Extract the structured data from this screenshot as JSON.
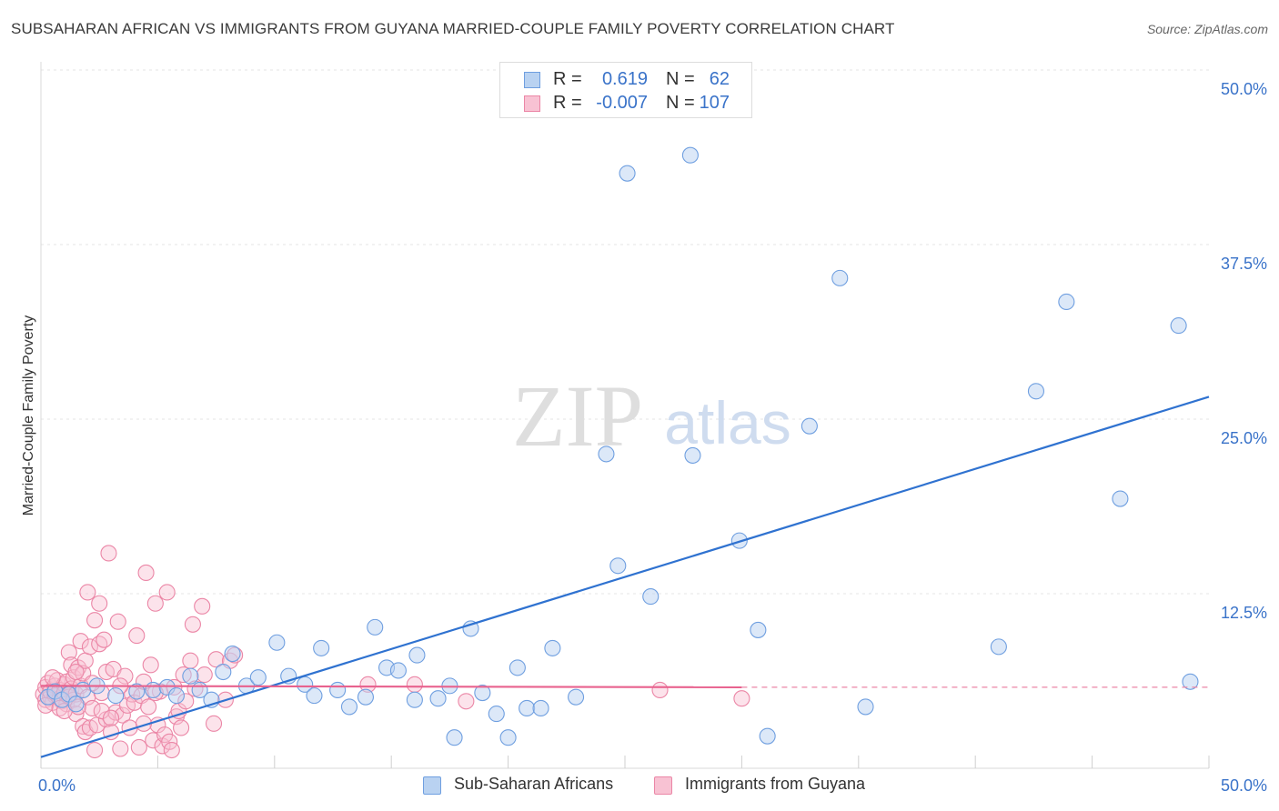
{
  "header": {
    "title": "SUBSAHARAN AFRICAN VS IMMIGRANTS FROM GUYANA MARRIED-COUPLE FAMILY POVERTY CORRELATION CHART",
    "source": "Source: ZipAtlas.com"
  },
  "watermark": {
    "zip": "ZIP",
    "atlas": "atlas"
  },
  "legend": {
    "r_label": "R =",
    "n_label": "N =",
    "rows": [
      {
        "r": "0.619",
        "n": "62"
      },
      {
        "r": "-0.007",
        "n": "107"
      }
    ]
  },
  "colors": {
    "blue_fill": "#b9d2f1",
    "blue_stroke": "#6f9fe0",
    "blue_line": "#2f72d0",
    "pink_fill": "#f8c2d3",
    "pink_stroke": "#eb86a6",
    "pink_line": "#e8628e",
    "tick_label": "#3a73c9",
    "grid": "#e4e4e4"
  },
  "chart_data": {
    "type": "scatter",
    "title": "SUBSAHARAN AFRICAN VS IMMIGRANTS FROM GUYANA MARRIED-COUPLE FAMILY POVERTY CORRELATION CHART",
    "xlabel": "",
    "ylabel": "Married-Couple Family Poverty",
    "xlim": [
      0,
      50
    ],
    "ylim": [
      0,
      50
    ],
    "x_tick_labels": [
      "0.0%",
      "50.0%"
    ],
    "y_ticks": [
      12.5,
      25.0,
      37.5,
      50.0
    ],
    "y_tick_labels": [
      "12.5%",
      "25.0%",
      "37.5%",
      "50.0%"
    ],
    "grid": true,
    "legend_position": "bottom",
    "series": [
      {
        "name": "Sub-Saharan Africans",
        "color": "#6f9fe0",
        "r": 0.619,
        "n": 62,
        "trend": {
          "x": [
            0,
            50
          ],
          "y": [
            0.8,
            26.6
          ]
        },
        "points": [
          [
            0.3,
            5.1
          ],
          [
            0.6,
            5.5
          ],
          [
            0.9,
            4.9
          ],
          [
            1.2,
            5.3
          ],
          [
            1.5,
            4.6
          ],
          [
            1.8,
            5.6
          ],
          [
            2.4,
            5.9
          ],
          [
            3.2,
            5.2
          ],
          [
            4.1,
            5.5
          ],
          [
            4.8,
            5.6
          ],
          [
            5.4,
            5.8
          ],
          [
            5.8,
            5.2
          ],
          [
            6.4,
            6.6
          ],
          [
            6.8,
            5.6
          ],
          [
            7.3,
            4.9
          ],
          [
            7.8,
            6.9
          ],
          [
            8.2,
            8.2
          ],
          [
            8.8,
            5.9
          ],
          [
            9.3,
            6.5
          ],
          [
            10.1,
            9.0
          ],
          [
            10.6,
            6.6
          ],
          [
            11.3,
            6.0
          ],
          [
            11.7,
            5.2
          ],
          [
            12.0,
            8.6
          ],
          [
            12.7,
            5.6
          ],
          [
            13.2,
            4.4
          ],
          [
            13.9,
            5.1
          ],
          [
            14.3,
            10.1
          ],
          [
            14.8,
            7.2
          ],
          [
            15.3,
            7.0
          ],
          [
            16.0,
            4.9
          ],
          [
            16.1,
            8.1
          ],
          [
            17.0,
            5.0
          ],
          [
            17.5,
            5.9
          ],
          [
            17.7,
            2.2
          ],
          [
            18.4,
            10.0
          ],
          [
            18.9,
            5.4
          ],
          [
            19.5,
            3.9
          ],
          [
            20.0,
            2.2
          ],
          [
            20.4,
            7.2
          ],
          [
            20.8,
            4.3
          ],
          [
            21.4,
            4.3
          ],
          [
            21.9,
            8.6
          ],
          [
            22.9,
            5.1
          ],
          [
            24.2,
            22.5
          ],
          [
            24.7,
            14.5
          ],
          [
            25.1,
            42.6
          ],
          [
            26.1,
            12.3
          ],
          [
            27.8,
            43.9
          ],
          [
            27.9,
            22.4
          ],
          [
            29.9,
            16.3
          ],
          [
            30.7,
            9.9
          ],
          [
            31.1,
            2.3
          ],
          [
            32.9,
            24.5
          ],
          [
            34.2,
            35.1
          ],
          [
            35.3,
            4.4
          ],
          [
            41.0,
            8.7
          ],
          [
            42.6,
            27.0
          ],
          [
            43.9,
            33.4
          ],
          [
            46.2,
            19.3
          ],
          [
            48.7,
            31.7
          ],
          [
            49.2,
            6.2
          ]
        ]
      },
      {
        "name": "Immigrants from Guyana",
        "color": "#eb86a6",
        "r": -0.007,
        "n": 107,
        "trend": {
          "x": [
            0,
            30
          ],
          "y": [
            5.9,
            5.8
          ]
        },
        "trend_dashed": {
          "x": [
            30,
            50
          ],
          "y": [
            5.8,
            5.8
          ]
        },
        "points": [
          [
            0.1,
            5.3
          ],
          [
            0.2,
            5.8
          ],
          [
            0.2,
            4.9
          ],
          [
            0.3,
            6.1
          ],
          [
            0.4,
            5.1
          ],
          [
            0.4,
            5.5
          ],
          [
            0.5,
            4.7
          ],
          [
            0.6,
            5.9
          ],
          [
            0.6,
            5.2
          ],
          [
            0.7,
            6.3
          ],
          [
            0.8,
            5.0
          ],
          [
            0.8,
            5.6
          ],
          [
            0.9,
            4.8
          ],
          [
            1.0,
            6.0
          ],
          [
            1.0,
            5.4
          ],
          [
            1.1,
            4.6
          ],
          [
            1.1,
            6.2
          ],
          [
            1.2,
            5.1
          ],
          [
            1.2,
            8.3
          ],
          [
            1.3,
            7.4
          ],
          [
            1.3,
            5.7
          ],
          [
            1.4,
            4.9
          ],
          [
            1.4,
            6.5
          ],
          [
            1.5,
            5.3
          ],
          [
            1.5,
            3.9
          ],
          [
            1.6,
            7.2
          ],
          [
            1.6,
            4.4
          ],
          [
            1.7,
            9.1
          ],
          [
            1.7,
            5.9
          ],
          [
            1.8,
            6.8
          ],
          [
            1.8,
            3.0
          ],
          [
            1.9,
            7.7
          ],
          [
            1.9,
            2.6
          ],
          [
            2.0,
            12.6
          ],
          [
            2.0,
            5.1
          ],
          [
            2.1,
            8.7
          ],
          [
            2.1,
            2.9
          ],
          [
            2.2,
            4.3
          ],
          [
            2.3,
            1.3
          ],
          [
            2.3,
            10.6
          ],
          [
            2.4,
            3.1
          ],
          [
            2.5,
            8.9
          ],
          [
            2.5,
            11.8
          ],
          [
            2.6,
            5.4
          ],
          [
            2.7,
            9.2
          ],
          [
            2.8,
            3.5
          ],
          [
            2.8,
            6.9
          ],
          [
            2.9,
            15.4
          ],
          [
            3.0,
            2.6
          ],
          [
            3.1,
            7.1
          ],
          [
            3.2,
            4.0
          ],
          [
            3.3,
            10.5
          ],
          [
            3.4,
            1.4
          ],
          [
            3.5,
            3.8
          ],
          [
            3.6,
            6.6
          ],
          [
            3.7,
            4.5
          ],
          [
            3.8,
            2.9
          ],
          [
            3.9,
            5.3
          ],
          [
            4.0,
            4.7
          ],
          [
            4.1,
            9.5
          ],
          [
            4.2,
            1.5
          ],
          [
            4.3,
            5.2
          ],
          [
            4.4,
            6.2
          ],
          [
            4.5,
            14.0
          ],
          [
            4.6,
            4.4
          ],
          [
            4.7,
            7.4
          ],
          [
            4.8,
            2.0
          ],
          [
            4.9,
            11.8
          ],
          [
            5.0,
            3.1
          ],
          [
            5.1,
            5.5
          ],
          [
            5.2,
            1.6
          ],
          [
            5.3,
            2.4
          ],
          [
            5.4,
            12.6
          ],
          [
            5.5,
            1.9
          ],
          [
            5.6,
            1.3
          ],
          [
            5.7,
            5.8
          ],
          [
            5.8,
            3.7
          ],
          [
            5.9,
            4.1
          ],
          [
            6.0,
            2.9
          ],
          [
            6.2,
            4.8
          ],
          [
            6.4,
            7.7
          ],
          [
            6.5,
            10.3
          ],
          [
            6.6,
            5.7
          ],
          [
            6.9,
            11.6
          ],
          [
            7.0,
            6.7
          ],
          [
            7.4,
            3.2
          ],
          [
            7.5,
            7.8
          ],
          [
            7.9,
            4.9
          ],
          [
            8.1,
            7.7
          ],
          [
            8.3,
            8.1
          ],
          [
            0.2,
            4.5
          ],
          [
            0.5,
            6.5
          ],
          [
            0.8,
            4.3
          ],
          [
            1.0,
            4.1
          ],
          [
            1.5,
            6.9
          ],
          [
            2.2,
            6.1
          ],
          [
            2.6,
            4.1
          ],
          [
            3.0,
            3.6
          ],
          [
            3.4,
            5.9
          ],
          [
            4.4,
            3.2
          ],
          [
            4.9,
            5.4
          ],
          [
            6.1,
            6.7
          ],
          [
            14.0,
            6.0
          ],
          [
            16.0,
            6.0
          ],
          [
            18.2,
            4.8
          ],
          [
            26.5,
            5.6
          ],
          [
            30.0,
            5.0
          ]
        ]
      }
    ]
  },
  "bottom_legend": {
    "items": [
      {
        "label": "Sub-Saharan Africans"
      },
      {
        "label": "Immigrants from Guyana"
      }
    ]
  }
}
